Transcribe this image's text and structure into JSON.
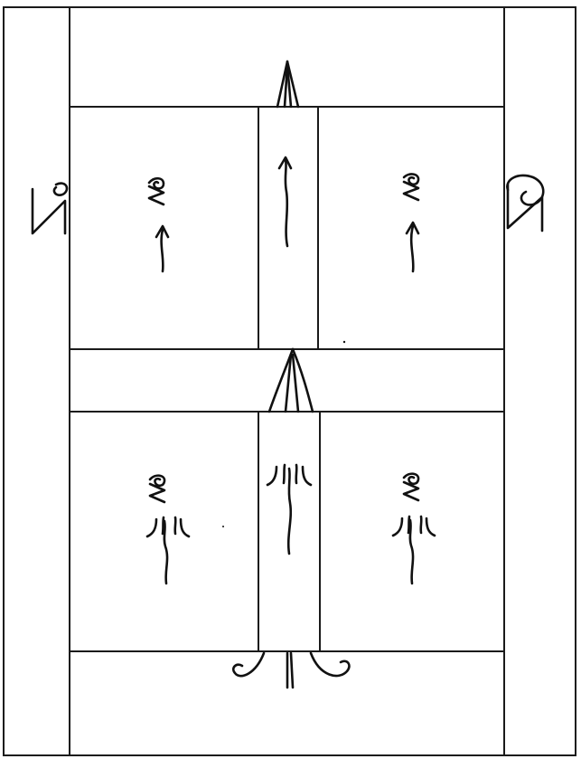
{
  "diagram": {
    "kind": "pattern-layout-sketch",
    "colors": {
      "line": "#1a1a1a",
      "ink": "#111111",
      "paper": "#ffffff"
    },
    "symbols": {
      "up-arrow": "arrow-up-icon",
      "stitch-mark": "spiral-icon",
      "tuft": "three-strand-icon",
      "curl": "curl-icon"
    }
  }
}
